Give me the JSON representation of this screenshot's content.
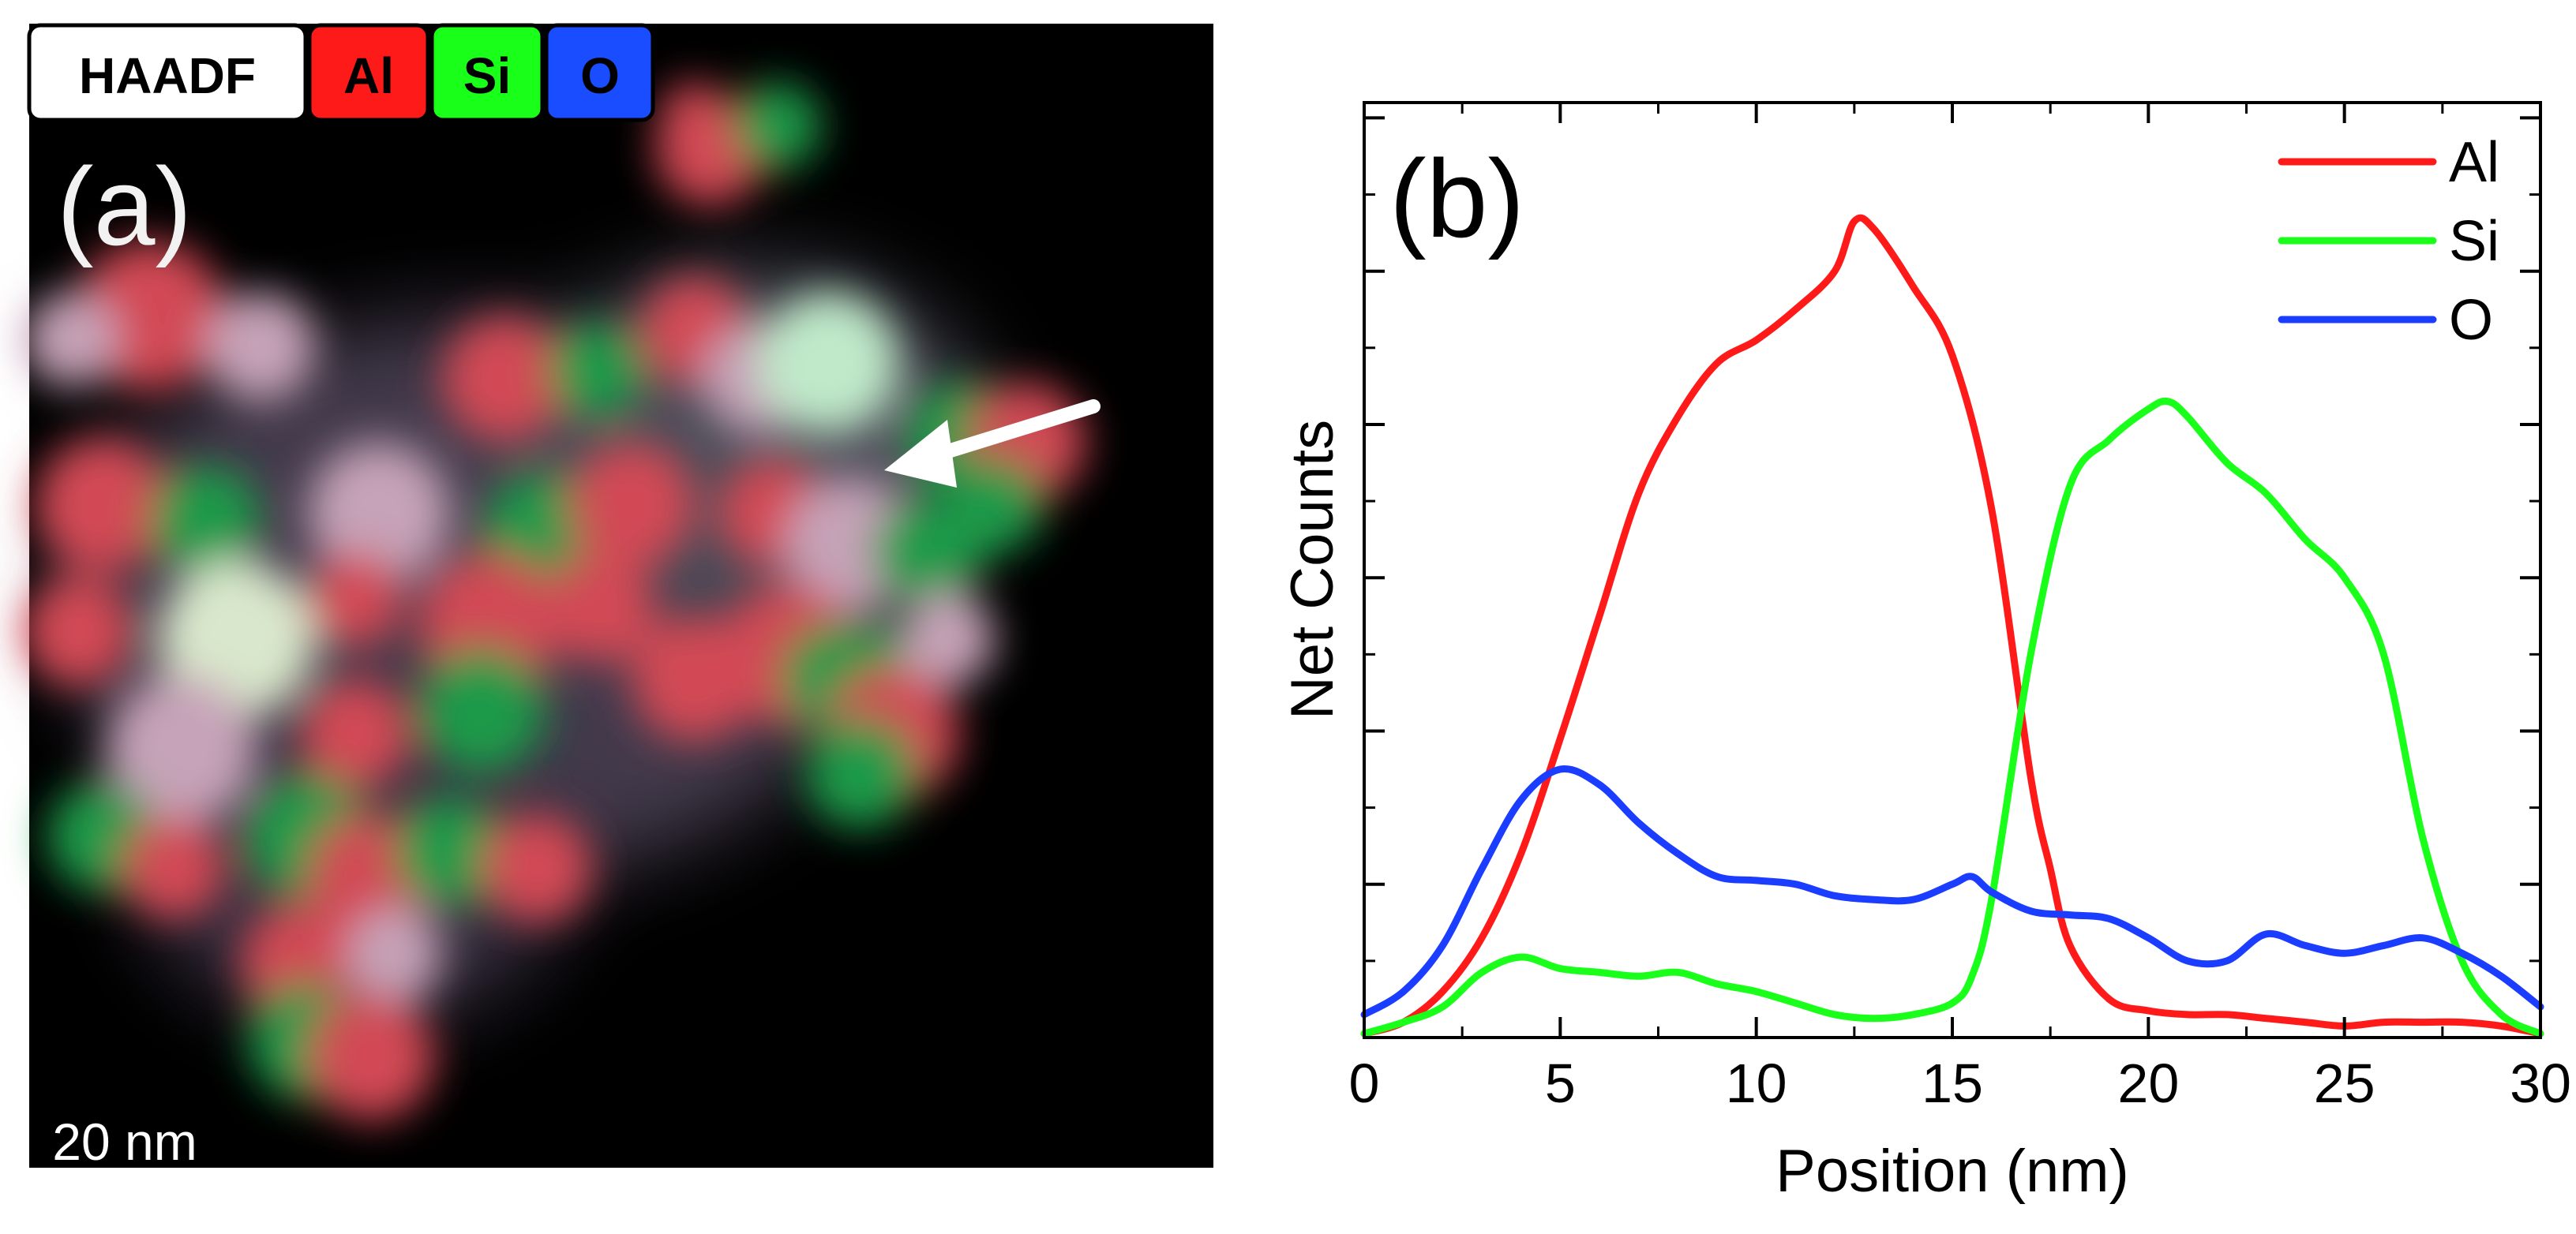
{
  "panel_a": {
    "label": "(a)",
    "legend": [
      {
        "text": "HAADF",
        "color": "#ffffff",
        "text_color": "#000000"
      },
      {
        "text": "Al",
        "color": "#ff1a1a",
        "text_color": "#000000"
      },
      {
        "text": "Si",
        "color": "#1aff1a",
        "text_color": "#000000"
      },
      {
        "text": "O",
        "color": "#1a4dff",
        "text_color": "#000000"
      }
    ],
    "scale_bar": "20 nm"
  },
  "chart_data": {
    "type": "line",
    "panel_label": "(b)",
    "title": "",
    "xlabel": "Position (nm)",
    "ylabel": "Net Counts",
    "xlim": [
      0,
      30
    ],
    "ylim": [
      0,
      1.22
    ],
    "xticks": [
      0,
      5,
      10,
      15,
      20,
      25,
      30
    ],
    "xtick_labels": [
      "0",
      "5",
      "10",
      "15",
      "20",
      "25",
      "30"
    ],
    "yticks": [
      0.2,
      0.4,
      0.6,
      0.8,
      1.0,
      1.2
    ],
    "ytick_labels": [],
    "grid": false,
    "legend_position": "top-right",
    "series": [
      {
        "name": "Al",
        "color": "#ff1a1a",
        "x": [
          0,
          1,
          2,
          3,
          4,
          5,
          6,
          7,
          8,
          9,
          10,
          11,
          12,
          12.5,
          13,
          14,
          15,
          16,
          17,
          17.5,
          18,
          19,
          20,
          21,
          22,
          23,
          24,
          25,
          26,
          27,
          28,
          29,
          30
        ],
        "y": [
          0.005,
          0.02,
          0.06,
          0.13,
          0.24,
          0.39,
          0.55,
          0.71,
          0.81,
          0.88,
          0.91,
          0.95,
          1.0,
          1.065,
          1.055,
          0.98,
          0.89,
          0.69,
          0.34,
          0.22,
          0.12,
          0.05,
          0.035,
          0.03,
          0.03,
          0.025,
          0.02,
          0.015,
          0.02,
          0.02,
          0.02,
          0.015,
          0.005
        ]
      },
      {
        "name": "Si",
        "color": "#1aff1a",
        "x": [
          0,
          1,
          2,
          3,
          4,
          5,
          6,
          7,
          8,
          9,
          10,
          11,
          12,
          13,
          14,
          15,
          15.5,
          16,
          17,
          18,
          19,
          20,
          20.5,
          21,
          22,
          23,
          24,
          25,
          26,
          27,
          28,
          29,
          30
        ],
        "y": [
          0.005,
          0.02,
          0.04,
          0.085,
          0.105,
          0.09,
          0.085,
          0.08,
          0.085,
          0.07,
          0.06,
          0.045,
          0.03,
          0.025,
          0.03,
          0.045,
          0.08,
          0.18,
          0.5,
          0.72,
          0.78,
          0.82,
          0.83,
          0.81,
          0.75,
          0.71,
          0.65,
          0.6,
          0.5,
          0.26,
          0.1,
          0.03,
          0.005
        ]
      },
      {
        "name": "O",
        "color": "#1a3dff",
        "x": [
          0,
          1,
          2,
          3,
          4,
          5,
          6,
          7,
          8,
          9,
          10,
          11,
          12,
          13,
          14,
          15,
          15.5,
          16,
          17,
          18,
          19,
          20,
          21,
          22,
          23,
          24,
          25,
          26,
          27,
          28,
          29,
          30
        ],
        "y": [
          0.03,
          0.06,
          0.12,
          0.22,
          0.31,
          0.35,
          0.33,
          0.28,
          0.24,
          0.21,
          0.205,
          0.2,
          0.185,
          0.18,
          0.18,
          0.2,
          0.21,
          0.19,
          0.165,
          0.16,
          0.155,
          0.13,
          0.1,
          0.1,
          0.135,
          0.12,
          0.11,
          0.12,
          0.13,
          0.11,
          0.08,
          0.04
        ]
      }
    ]
  }
}
